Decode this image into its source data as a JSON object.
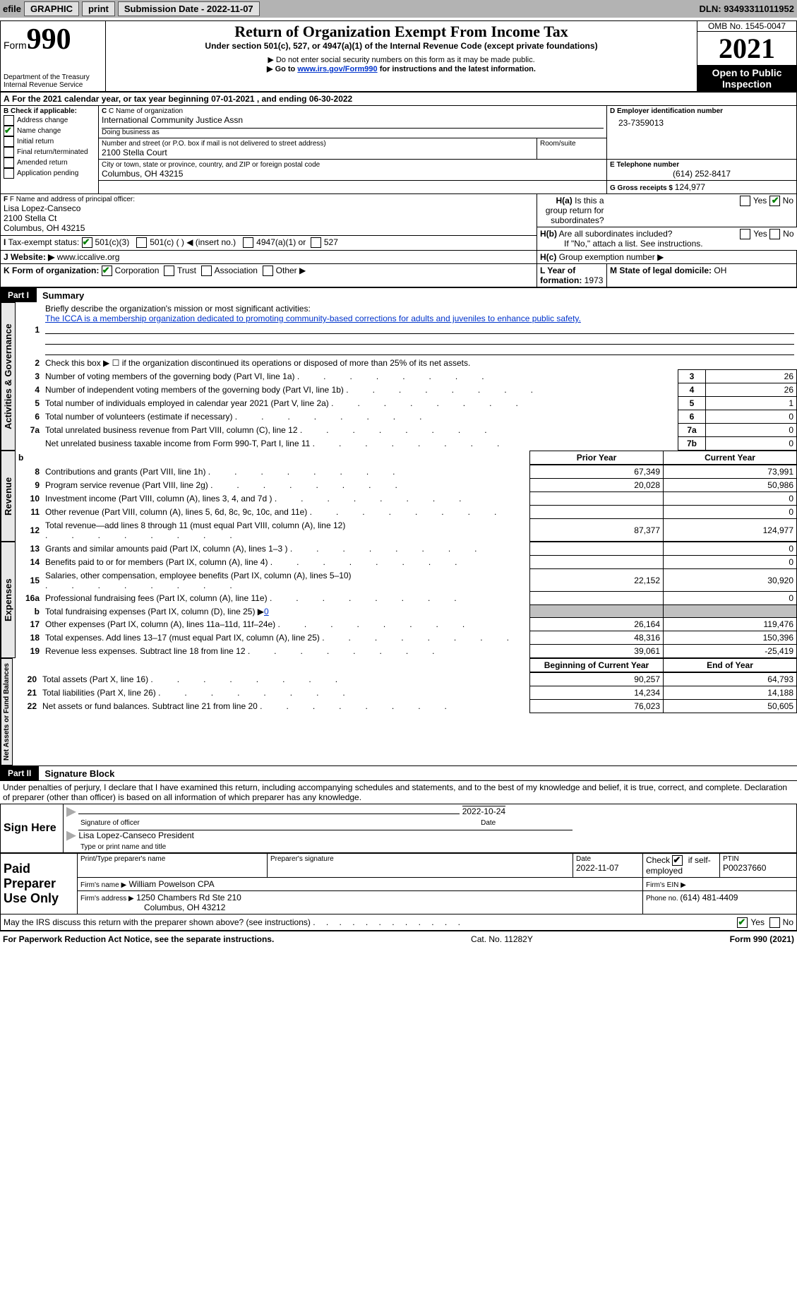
{
  "header": {
    "efile": "efile",
    "graphic": "GRAPHIC",
    "print": "print",
    "submission": "Submission Date - 2022-11-07",
    "dln": "DLN: 93493311011952"
  },
  "top": {
    "form": "Form",
    "formnum": "990",
    "dept": "Department of the Treasury",
    "irs": "Internal Revenue Service",
    "title": "Return of Organization Exempt From Income Tax",
    "under": "Under section 501(c), 527, or 4947(a)(1) of the Internal Revenue Code (except private foundations)",
    "ssn_note": "▶ Do not enter social security numbers on this form as it may be made public.",
    "goto1": "▶ Go to ",
    "goto_link": "www.irs.gov/Form990",
    "goto2": " for instructions and the latest information.",
    "omb": "OMB No. 1545-0047",
    "year": "2021",
    "otpi": "Open to Public Inspection"
  },
  "periodA": "For the 2021 calendar year, or tax year beginning 07-01-2021    , and ending 06-30-2022",
  "boxB": {
    "title": "B Check if applicable:",
    "items": [
      "Address change",
      "Name change",
      "Initial return",
      "Final return/terminated",
      "Amended return",
      "Application pending"
    ],
    "checked": [
      false,
      true,
      false,
      false,
      false,
      false
    ]
  },
  "boxC": {
    "label": "C Name of organization",
    "name": "International Community Justice Assn",
    "dba_label": "Doing business as",
    "addr_label": "Number and street (or P.O. box if mail is not delivered to street address)",
    "room_label": "Room/suite",
    "street": "2100 Stella Court",
    "city_label": "City or town, state or province, country, and ZIP or foreign postal code",
    "city": "Columbus, OH   43215"
  },
  "boxD": {
    "label": "D Employer identification number",
    "value": "23-7359013"
  },
  "boxE": {
    "label": "E Telephone number",
    "value": "(614) 252-8417"
  },
  "boxG": {
    "label": "G Gross receipts $ ",
    "value": "124,977"
  },
  "boxF": {
    "label": "F Name and address of principal officer:",
    "name": "Lisa Lopez-Canseco",
    "street": "2100 Stella Ct",
    "city": "Columbus, OH  43215"
  },
  "boxH": {
    "a": "Is this a group return for subordinates?",
    "b": "Are all subordinates included?",
    "note": "If \"No,\" attach a list. See instructions.",
    "c": "Group exemption number ▶"
  },
  "taxExempt": {
    "label": "Tax-exempt status:",
    "opt1": "501(c)(3)",
    "opt2": "501(c) (   ) ◀ (insert no.)",
    "opt3": "4947(a)(1) or",
    "opt4": "527"
  },
  "website": {
    "label": "Website: ▶",
    "value": "www.iccalive.org"
  },
  "formOrg": {
    "label": "K Form of organization:",
    "opt1": "Corporation",
    "opt2": "Trust",
    "opt3": "Association",
    "opt4": "Other ▶"
  },
  "yearFormed": {
    "label": "L Year of formation: ",
    "value": "1973"
  },
  "domicile": {
    "label": "M State of legal domicile: ",
    "value": "OH"
  },
  "part1": {
    "label": "Part I",
    "title": "Summary",
    "mission_label": "Briefly describe the organization's mission or most significant activities:",
    "mission": "The ICCA is a membership organization dedicated to promoting community-based corrections for adults and juveniles to enhance public safety.",
    "line2": "Check this box ▶ ☐  if the organization discontinued its operations or disposed of more than 25% of its net assets.",
    "sections": {
      "gov": "Activities & Governance",
      "rev": "Revenue",
      "exp": "Expenses",
      "net": "Net Assets or Fund Balances"
    },
    "rows_gov": [
      {
        "n": "3",
        "t": "Number of voting members of the governing body (Part VI, line 1a)",
        "box": "3",
        "v": "26"
      },
      {
        "n": "4",
        "t": "Number of independent voting members of the governing body (Part VI, line 1b)",
        "box": "4",
        "v": "26"
      },
      {
        "n": "5",
        "t": "Total number of individuals employed in calendar year 2021 (Part V, line 2a)",
        "box": "5",
        "v": "1"
      },
      {
        "n": "6",
        "t": "Total number of volunteers (estimate if necessary)",
        "box": "6",
        "v": "0"
      },
      {
        "n": "7a",
        "t": "Total unrelated business revenue from Part VIII, column (C), line 12",
        "box": "7a",
        "v": "0"
      },
      {
        "n": "  ",
        "t": "Net unrelated business taxable income from Form 990-T, Part I, line 11",
        "box": "7b",
        "v": "0"
      }
    ],
    "hdr_prior": "Prior Year",
    "hdr_curr": "Current Year",
    "rows_rev": [
      {
        "n": "8",
        "t": "Contributions and grants (Part VIII, line 1h)",
        "p": "67,349",
        "c": "73,991"
      },
      {
        "n": "9",
        "t": "Program service revenue (Part VIII, line 2g)",
        "p": "20,028",
        "c": "50,986"
      },
      {
        "n": "10",
        "t": "Investment income (Part VIII, column (A), lines 3, 4, and 7d )",
        "p": "",
        "c": "0"
      },
      {
        "n": "11",
        "t": "Other revenue (Part VIII, column (A), lines 5, 6d, 8c, 9c, 10c, and 11e)",
        "p": "",
        "c": "0"
      },
      {
        "n": "12",
        "t": "Total revenue—add lines 8 through 11 (must equal Part VIII, column (A), line 12)",
        "p": "87,377",
        "c": "124,977"
      }
    ],
    "rows_exp": [
      {
        "n": "13",
        "t": "Grants and similar amounts paid (Part IX, column (A), lines 1–3 )",
        "p": "",
        "c": "0"
      },
      {
        "n": "14",
        "t": "Benefits paid to or for members (Part IX, column (A), line 4)",
        "p": "",
        "c": "0"
      },
      {
        "n": "15",
        "t": "Salaries, other compensation, employee benefits (Part IX, column (A), lines 5–10)",
        "p": "22,152",
        "c": "30,920"
      },
      {
        "n": "16a",
        "t": "Professional fundraising fees (Part IX, column (A), line 11e)",
        "p": "",
        "c": "0"
      },
      {
        "n": "b",
        "t": "Total fundraising expenses (Part IX, column (D), line 25) ▶",
        "p": "SHADE",
        "c": "SHADE",
        "extra": "0"
      },
      {
        "n": "17",
        "t": "Other expenses (Part IX, column (A), lines 11a–11d, 11f–24e)",
        "p": "26,164",
        "c": "119,476"
      },
      {
        "n": "18",
        "t": "Total expenses. Add lines 13–17 (must equal Part IX, column (A), line 25)",
        "p": "48,316",
        "c": "150,396"
      },
      {
        "n": "19",
        "t": "Revenue less expenses. Subtract line 18 from line 12",
        "p": "39,061",
        "c": "-25,419"
      }
    ],
    "hdr_boy": "Beginning of Current Year",
    "hdr_eoy": "End of Year",
    "rows_net": [
      {
        "n": "20",
        "t": "Total assets (Part X, line 16)",
        "p": "90,257",
        "c": "64,793"
      },
      {
        "n": "21",
        "t": "Total liabilities (Part X, line 26)",
        "p": "14,234",
        "c": "14,188"
      },
      {
        "n": "22",
        "t": "Net assets or fund balances. Subtract line 21 from line 20",
        "p": "76,023",
        "c": "50,605"
      }
    ]
  },
  "part2": {
    "label": "Part II",
    "title": "Signature Block",
    "declaration": "Under penalties of perjury, I declare that I have examined this return, including accompanying schedules and statements, and to the best of my knowledge and belief, it is true, correct, and complete. Declaration of preparer (other than officer) is based on all information of which preparer has any knowledge.",
    "sign_here": "Sign Here",
    "sig_officer": "Signature of officer",
    "sig_date": "2022-10-24",
    "date_label": "Date",
    "officer_name": "Lisa Lopez-Canseco  President",
    "officer_label": "Type or print name and title",
    "paid": "Paid Preparer Use Only",
    "preparer_name_label": "Print/Type preparer's name",
    "preparer_sig_label": "Preparer's signature",
    "prep_date_label": "Date",
    "prep_date": "2022-11-07",
    "check_se": "Check ☑ if self-employed",
    "ptin_label": "PTIN",
    "ptin": "P00237660",
    "firm_name_label": "Firm's name  ▶",
    "firm_name": "William Powelson CPA",
    "firm_ein_label": "Firm's EIN ▶",
    "firm_addr_label": "Firm's address ▶",
    "firm_addr1": "1250 Chambers Rd Ste 210",
    "firm_addr2": "Columbus, OH  43212",
    "phone_label": "Phone no. ",
    "phone": "(614) 481-4409",
    "discuss": "May the IRS discuss this return with the preparer shown above? (see instructions)"
  },
  "footer": {
    "left": "For Paperwork Reduction Act Notice, see the separate instructions.",
    "mid": "Cat. No. 11282Y",
    "right": "Form 990 (2021)"
  },
  "yes": "Yes",
  "no": "No"
}
